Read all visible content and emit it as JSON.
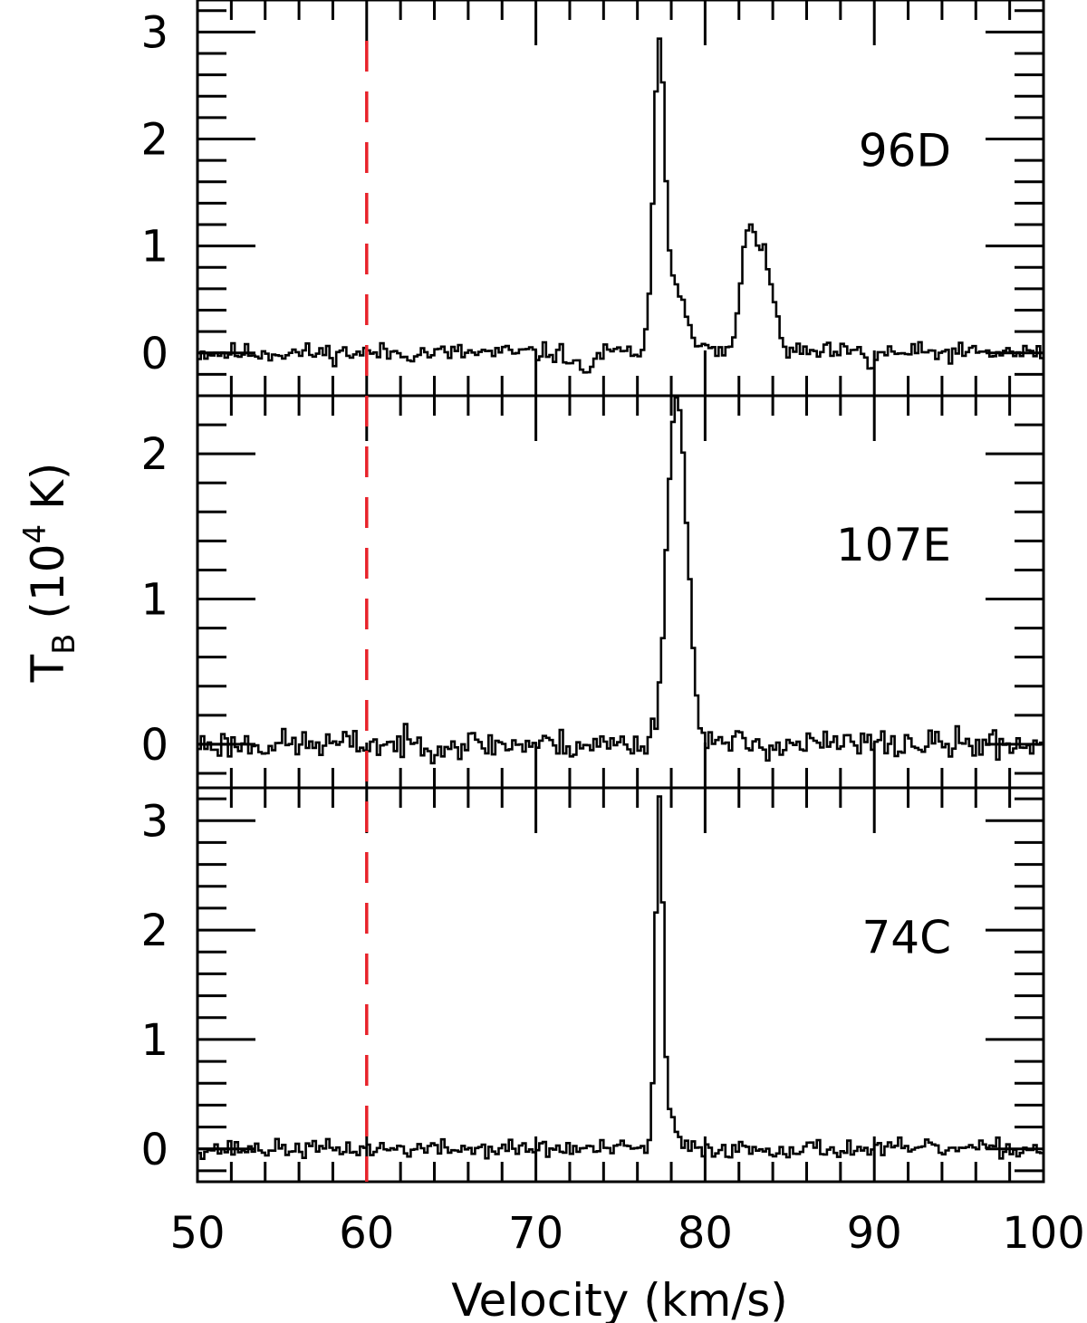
{
  "chart_data": {
    "type": "line",
    "step": true,
    "xlabel": "Velocity (km/s)",
    "ylabel_main": "T",
    "ylabel_sub": "B",
    "ylabel_open": "(10",
    "ylabel_exp": "4",
    "ylabel_close": "K)",
    "xlim": [
      50,
      100
    ],
    "x_ticks": [
      50,
      60,
      70,
      80,
      90,
      100
    ],
    "x_tick_labels": [
      "50",
      "60",
      "70",
      "80",
      "90",
      "100"
    ],
    "reference_line": {
      "x": 60,
      "color": "#e8222a",
      "style": "dashed"
    },
    "panels": [
      {
        "name": "96D",
        "ylim": [
          -0.4,
          3.3
        ],
        "y_ticks": [
          0,
          1,
          2,
          3
        ],
        "y_tick_labels": [
          "0",
          "1",
          "2",
          "3"
        ],
        "noise": 0.045,
        "seed": 11,
        "peaks": [
          {
            "center": 77.3,
            "amp": 2.62,
            "width": 0.32
          },
          {
            "center": 78.2,
            "amp": 0.62,
            "width": 0.75
          },
          {
            "center": 82.6,
            "amp": 1.12,
            "width": 0.45
          },
          {
            "center": 83.6,
            "amp": 0.75,
            "width": 0.5
          },
          {
            "center": 72.8,
            "amp": -0.17,
            "width": 0.5
          },
          {
            "center": 89.8,
            "amp": -0.12,
            "width": 0.25
          }
        ]
      },
      {
        "name": "107E",
        "ylim": [
          -0.3,
          2.4
        ],
        "y_ticks": [
          0,
          1,
          2
        ],
        "y_tick_labels": [
          "0",
          "1",
          "2"
        ],
        "noise": 0.05,
        "seed": 23,
        "peaks": [
          {
            "center": 78.3,
            "amp": 2.35,
            "width": 0.55
          },
          {
            "center": 79.1,
            "amp": 0.25,
            "width": 0.5
          }
        ]
      },
      {
        "name": "74C",
        "ylim": [
          -0.3,
          3.3
        ],
        "y_ticks": [
          0,
          1,
          2,
          3
        ],
        "y_tick_labels": [
          "0",
          "1",
          "2",
          "3"
        ],
        "noise": 0.04,
        "seed": 37,
        "peaks": [
          {
            "center": 77.3,
            "amp": 3.05,
            "width": 0.22
          },
          {
            "center": 77.8,
            "amp": 0.28,
            "width": 0.45
          }
        ]
      }
    ]
  }
}
